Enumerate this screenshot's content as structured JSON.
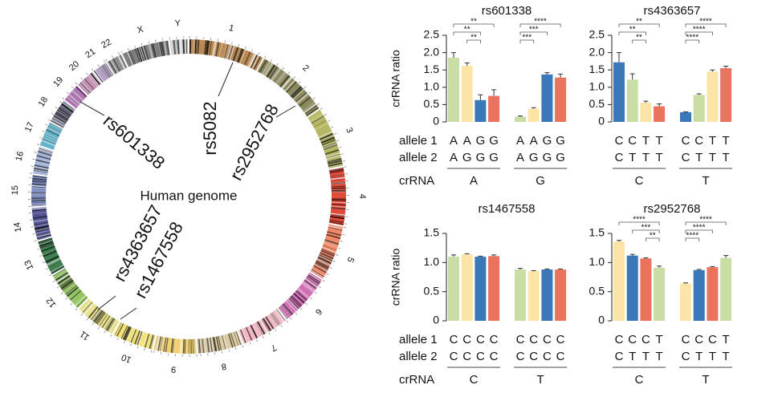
{
  "genome": {
    "title": "Human genome",
    "chromosomes": [
      "1",
      "2",
      "3",
      "4",
      "5",
      "6",
      "7",
      "8",
      "9",
      "10",
      "11",
      "12",
      "13",
      "14",
      "15",
      "16",
      "17",
      "18",
      "19",
      "20",
      "21",
      "22",
      "X",
      "Y"
    ],
    "snps": [
      "rs5082",
      "rs2952768",
      "rs601338",
      "rs4363657",
      "rs1467558"
    ]
  },
  "chart_data": [
    {
      "type": "bar",
      "title": "rs601338",
      "y_label": "crRNA ratio",
      "row_labels": [
        "allele 1",
        "allele 2",
        "crRNA"
      ],
      "groups": [
        "A",
        "G"
      ],
      "allele1": [
        "A",
        "A",
        "G",
        "G",
        "A",
        "A",
        "G",
        "G"
      ],
      "allele2": [
        "A",
        "G",
        "G",
        "G",
        "A",
        "G",
        "G",
        "G"
      ],
      "values": [
        1.85,
        1.62,
        0.63,
        0.75,
        0.15,
        0.38,
        1.37,
        1.28
      ],
      "errors": [
        0.15,
        0.08,
        0.15,
        0.18,
        0.02,
        0.03,
        0.05,
        0.1
      ],
      "colors": [
        "#c8dea4",
        "#fbe4a6",
        "#3b78b8",
        "#ea735e",
        "#c8dea4",
        "#fbe4a6",
        "#3b78b8",
        "#ea735e"
      ],
      "ylim": [
        0,
        2.5
      ],
      "yticks": [
        0,
        0.5,
        {
          "value": 1,
          "label": "1.0"
        },
        1.5,
        {
          "value": 2,
          "label": "2.0"
        },
        2.5
      ],
      "comparisons": [
        {
          "bars": [
            0,
            3
          ],
          "label": "**"
        },
        {
          "bars": [
            0,
            2
          ],
          "label": "**"
        },
        {
          "bars": [
            1,
            2
          ],
          "label": "**"
        },
        {
          "bars": [
            4,
            7
          ],
          "label": "****"
        },
        {
          "bars": [
            4,
            6
          ],
          "label": "***"
        },
        {
          "bars": [
            4,
            5
          ],
          "label": "***"
        }
      ]
    },
    {
      "type": "bar",
      "title": "rs4363657",
      "groups": [
        "C",
        "T"
      ],
      "allele1": [
        "C",
        "C",
        "T",
        "T",
        "C",
        "C",
        "T",
        "T"
      ],
      "allele2": [
        "C",
        "T",
        "T",
        "T",
        "C",
        "T",
        "T",
        "T"
      ],
      "values": [
        1.72,
        1.22,
        0.55,
        0.45,
        0.28,
        0.78,
        1.45,
        1.55
      ],
      "errors": [
        0.28,
        0.17,
        0.05,
        0.07,
        0.01,
        0.03,
        0.05,
        0.06
      ],
      "colors": [
        "#3b78b8",
        "#c8dea4",
        "#fbe4a6",
        "#ea735e",
        "#3b78b8",
        "#c8dea4",
        "#fbe4a6",
        "#ea735e"
      ],
      "ylim": [
        0,
        2.5
      ],
      "yticks": [
        0,
        0.5,
        {
          "value": 1,
          "label": "1.0"
        },
        1.5,
        {
          "value": 2,
          "label": "2.0"
        },
        2.5
      ],
      "comparisons": [
        {
          "bars": [
            0,
            3
          ],
          "label": "**"
        },
        {
          "bars": [
            0,
            2
          ],
          "label": "**"
        },
        {
          "bars": [
            1,
            2
          ],
          "label": "**"
        },
        {
          "bars": [
            4,
            7
          ],
          "label": "****"
        },
        {
          "bars": [
            4,
            6
          ],
          "label": "****"
        },
        {
          "bars": [
            4,
            5
          ],
          "label": "****"
        }
      ]
    },
    {
      "type": "bar",
      "title": "rs1467558",
      "y_label": "crRNA ratio",
      "row_labels": [
        "allele 1",
        "allele 2",
        "crRNA"
      ],
      "groups": [
        "C",
        "T"
      ],
      "allele1": [
        "C",
        "C",
        "C",
        "C",
        "C",
        "C",
        "C",
        "C"
      ],
      "allele2": [
        "C",
        "C",
        "C",
        "C",
        "C",
        "C",
        "C",
        "C"
      ],
      "values": [
        1.1,
        1.14,
        1.1,
        1.11,
        0.88,
        0.85,
        0.88,
        0.88
      ],
      "errors": [
        0.03,
        0.01,
        0.01,
        0.02,
        0.02,
        0.01,
        0.01,
        0.01
      ],
      "colors": [
        "#c8dea4",
        "#fbe4a6",
        "#3b78b8",
        "#ea735e",
        "#c8dea4",
        "#fbe4a6",
        "#3b78b8",
        "#ea735e"
      ],
      "ylim": [
        0,
        1.5
      ],
      "yticks": [
        0,
        0.5,
        {
          "value": 1,
          "label": "1.0"
        },
        1.5
      ],
      "comparisons": []
    },
    {
      "type": "bar",
      "title": "rs2952768",
      "groups": [
        "C",
        "T"
      ],
      "allele1": [
        "C",
        "C",
        "C",
        "T",
        "C",
        "C",
        "C",
        "T"
      ],
      "allele2": [
        "C",
        "T",
        "T",
        "T",
        "C",
        "T",
        "T",
        "T"
      ],
      "values": [
        1.36,
        1.12,
        1.07,
        0.91,
        0.64,
        0.87,
        0.92,
        1.08
      ],
      "errors": [
        0.02,
        0.02,
        0.01,
        0.03,
        0.01,
        0.01,
        0.01,
        0.04
      ],
      "colors": [
        "#fbe4a6",
        "#3b78b8",
        "#ea735e",
        "#c8dea4",
        "#fbe4a6",
        "#3b78b8",
        "#ea735e",
        "#c8dea4"
      ],
      "ylim": [
        0,
        1.5
      ],
      "yticks": [
        0,
        0.5,
        {
          "value": 1,
          "label": "1.0"
        },
        1.5
      ],
      "comparisons": [
        {
          "bars": [
            0,
            3
          ],
          "label": "****"
        },
        {
          "bars": [
            1,
            3
          ],
          "label": "***"
        },
        {
          "bars": [
            2,
            3
          ],
          "label": "**"
        },
        {
          "bars": [
            4,
            7
          ],
          "label": "****"
        },
        {
          "bars": [
            4,
            6
          ],
          "label": "****"
        },
        {
          "bars": [
            4,
            5
          ],
          "label": "****"
        }
      ]
    }
  ]
}
